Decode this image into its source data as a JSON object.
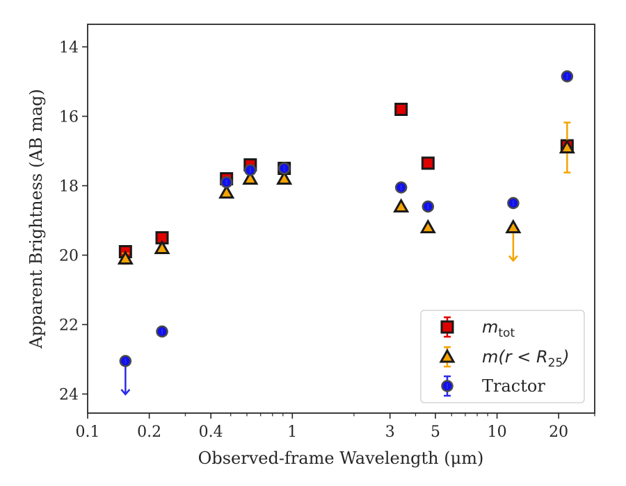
{
  "chart_data": {
    "type": "scatter",
    "xlabel": "Observed-frame Wavelength (μm)",
    "ylabel": "Apparent Brightness (AB mag)",
    "x_scale": "log",
    "y_inverted": true,
    "xlim": [
      0.1,
      30
    ],
    "ylim": [
      24.55,
      13.35
    ],
    "x_ticks": [
      {
        "value": 0.1,
        "label": "0.1"
      },
      {
        "value": 0.2,
        "label": "0.2"
      },
      {
        "value": 0.4,
        "label": "0.4"
      },
      {
        "value": 1,
        "label": "1"
      },
      {
        "value": 3,
        "label": "3"
      },
      {
        "value": 5,
        "label": "5"
      },
      {
        "value": 10,
        "label": "10"
      },
      {
        "value": 20,
        "label": "20"
      }
    ],
    "y_ticks": [
      {
        "value": 14,
        "label": "14"
      },
      {
        "value": 16,
        "label": "16"
      },
      {
        "value": 18,
        "label": "18"
      },
      {
        "value": 20,
        "label": "20"
      },
      {
        "value": 22,
        "label": "22"
      },
      {
        "value": 24,
        "label": "24"
      }
    ],
    "grid": false,
    "legend_position": "lower-right",
    "series": [
      {
        "name": "m_tot",
        "legend_main": "m",
        "legend_sub": "tot",
        "marker": "square",
        "color": "#e00000",
        "errcolor": "#e00000",
        "points": [
          {
            "x": 0.153,
            "y": 19.9,
            "err": 0
          },
          {
            "x": 0.231,
            "y": 19.5,
            "err": 0
          },
          {
            "x": 0.477,
            "y": 17.8,
            "err": 0
          },
          {
            "x": 0.623,
            "y": 17.4,
            "err": 0
          },
          {
            "x": 0.913,
            "y": 17.5,
            "err": 0
          },
          {
            "x": 3.4,
            "y": 15.8,
            "err": 0
          },
          {
            "x": 4.6,
            "y": 17.35,
            "err": 0
          },
          {
            "x": 22.0,
            "y": 16.85,
            "err": 0
          }
        ]
      },
      {
        "name": "m(r < R25)",
        "legend_main": "m(r < R",
        "legend_sub": "25",
        "legend_tail": ")",
        "marker": "triangle",
        "color": "#f5a300",
        "errcolor": "#f5a300",
        "points": [
          {
            "x": 0.153,
            "y": 20.1,
            "err": 0.15
          },
          {
            "x": 0.231,
            "y": 19.8,
            "err": 0
          },
          {
            "x": 0.477,
            "y": 18.2,
            "err": 0
          },
          {
            "x": 0.623,
            "y": 17.8,
            "err": 0
          },
          {
            "x": 0.913,
            "y": 17.8,
            "err": 0
          },
          {
            "x": 3.4,
            "y": 18.6,
            "err": 0
          },
          {
            "x": 4.6,
            "y": 19.2,
            "err": 0
          },
          {
            "x": 12.0,
            "y": 19.2,
            "upper_limit": true
          },
          {
            "x": 22.0,
            "y": 16.9,
            "err": 0.72
          }
        ]
      },
      {
        "name": "Tractor",
        "legend_main": "Tractor",
        "marker": "circle",
        "color": "#1010ee",
        "errcolor": "#2a2ae8",
        "points": [
          {
            "x": 0.153,
            "y": 23.05,
            "upper_limit": true
          },
          {
            "x": 0.231,
            "y": 22.2,
            "err": 0
          },
          {
            "x": 0.477,
            "y": 17.9,
            "err": 0
          },
          {
            "x": 0.623,
            "y": 17.55,
            "err": 0
          },
          {
            "x": 0.913,
            "y": 17.5,
            "err": 0
          },
          {
            "x": 3.4,
            "y": 18.05,
            "err": 0
          },
          {
            "x": 4.6,
            "y": 18.6,
            "err": 0
          },
          {
            "x": 12.0,
            "y": 18.5,
            "err": 0
          },
          {
            "x": 22.0,
            "y": 14.85,
            "err": 0
          }
        ]
      }
    ]
  }
}
